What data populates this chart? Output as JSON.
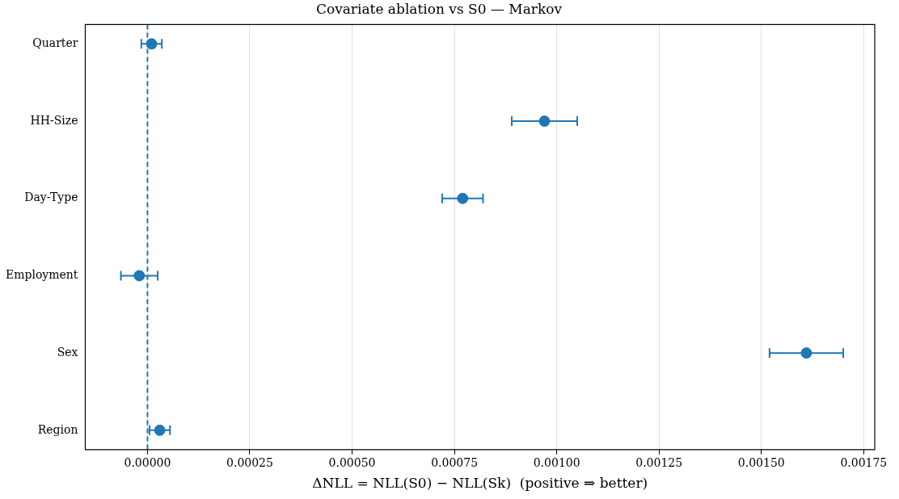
{
  "chart_data": {
    "type": "scatter",
    "title": "Covariate ablation vs S0 — Markov",
    "xlabel": "ΔNLL = NLL(S0) − NLL(Sk)  (positive ⇒ better)",
    "categories": [
      "Quarter",
      "HH-Size",
      "Day-Type",
      "Employment",
      "Sex",
      "Region"
    ],
    "values": [
      1e-05,
      0.00097,
      0.00077,
      -2e-05,
      0.00161,
      3e-05
    ],
    "errors": [
      2.5e-05,
      8e-05,
      5e-05,
      4.5e-05,
      9e-05,
      2.5e-05
    ],
    "color": "#1f77b4",
    "marker": "circle",
    "grid": "x",
    "orientation": "horizontal",
    "xlim": [
      -0.000152,
      0.001777
    ],
    "xticks": [
      {
        "value": 0,
        "label": "0.00000"
      },
      {
        "value": 0.00025,
        "label": "0.00025"
      },
      {
        "value": 0.0005,
        "label": "0.00050"
      },
      {
        "value": 0.00075,
        "label": "0.00075"
      },
      {
        "value": 0.001,
        "label": "0.00100"
      },
      {
        "value": 0.00125,
        "label": "0.00125"
      },
      {
        "value": 0.0015,
        "label": "0.00150"
      },
      {
        "value": 0.00175,
        "label": "0.00175"
      }
    ],
    "ref_lines": [
      {
        "axis": "x",
        "value": 0,
        "color": "#1f77b4",
        "line_style": "dashed"
      }
    ]
  }
}
